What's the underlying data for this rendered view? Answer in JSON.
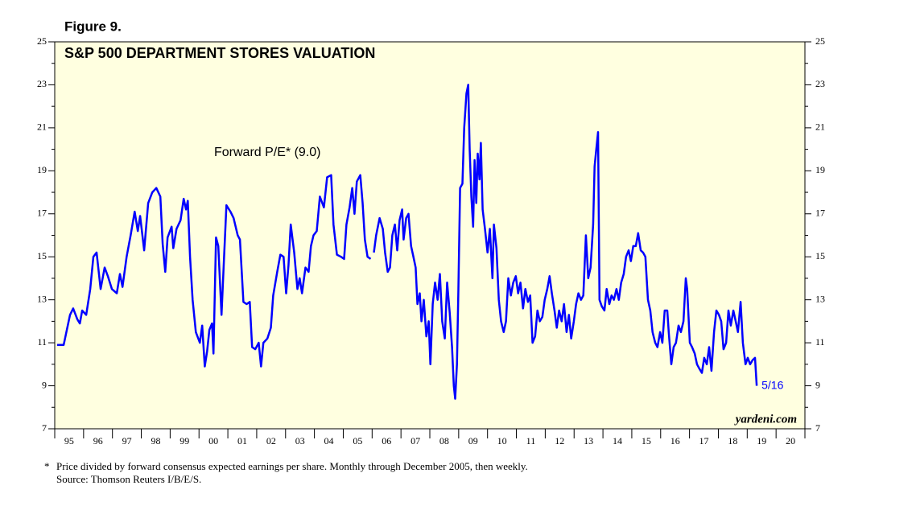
{
  "chart_data": {
    "type": "line",
    "figure_label": "Figure 9.",
    "title": "S&P 500 DEPARTMENT STORES VALUATION",
    "series": [
      {
        "name": "Forward P/E* (9.0)",
        "color": "#0000ff",
        "x": [
          1995.08,
          1995.31,
          1995.53,
          1995.64,
          1995.78,
          1995.87,
          1995.95,
          1996.09,
          1996.23,
          1996.34,
          1996.45,
          1996.59,
          1996.73,
          1996.84,
          1996.98,
          1997.15,
          1997.26,
          1997.35,
          1997.49,
          1997.63,
          1997.77,
          1997.88,
          1997.96,
          1998.1,
          1998.24,
          1998.38,
          1998.52,
          1998.66,
          1998.74,
          1998.83,
          1998.91,
          1999.05,
          1999.11,
          1999.22,
          1999.36,
          1999.47,
          1999.55,
          1999.61,
          1999.69,
          1999.78,
          1999.89,
          2000.03,
          2000.11,
          2000.2,
          2000.28,
          2000.36,
          2000.45,
          2000.5,
          2000.59,
          2000.67,
          2000.78,
          2000.87,
          2000.95,
          2001.09,
          2001.2,
          2001.34,
          2001.42,
          2001.54,
          2001.65,
          2001.76,
          2001.84,
          2001.95,
          2002.07,
          2002.15,
          2002.23,
          2002.37,
          2002.49,
          2002.57,
          2002.71,
          2002.82,
          2002.93,
          2003.02,
          2003.1,
          2003.18,
          2003.3,
          2003.41,
          2003.49,
          2003.57,
          2003.69,
          2003.8,
          2003.88,
          2003.97,
          2004.08,
          2004.19,
          2004.33,
          2004.44,
          2004.58,
          2004.66,
          2004.78,
          2004.92,
          2005.03,
          2005.11,
          2005.22,
          2005.31,
          2005.39,
          2005.47,
          2005.59,
          2005.67,
          2005.75,
          2005.84,
          2005.95,
          2005.98,
          2006.06,
          2006.14,
          2006.26,
          2006.37,
          2006.45,
          2006.54,
          2006.62,
          2006.7,
          2006.79,
          2006.87,
          2006.95,
          2007.04,
          2007.09,
          2007.18,
          2007.26,
          2007.35,
          2007.43,
          2007.51,
          2007.57,
          2007.65,
          2007.71,
          2007.79,
          2007.88,
          2007.96,
          2008.02,
          2008.1,
          2008.18,
          2008.27,
          2008.35,
          2008.43,
          2008.52,
          2008.6,
          2008.69,
          2008.77,
          2008.83,
          2008.88,
          2008.94,
          2008.99,
          2009.05,
          2009.13,
          2009.19,
          2009.27,
          2009.33,
          2009.38,
          2009.44,
          2009.5,
          2009.55,
          2009.61,
          2009.66,
          2009.72,
          2009.77,
          2009.83,
          2009.91,
          2010.0,
          2010.08,
          2010.17,
          2010.22,
          2010.31,
          2010.39,
          2010.47,
          2010.56,
          2010.64,
          2010.72,
          2010.81,
          2010.89,
          2010.98,
          2011.06,
          2011.14,
          2011.23,
          2011.31,
          2011.4,
          2011.48,
          2011.56,
          2011.65,
          2011.73,
          2011.81,
          2011.9,
          2011.98,
          2012.07,
          2012.15,
          2012.23,
          2012.32,
          2012.4,
          2012.48,
          2012.57,
          2012.65,
          2012.74,
          2012.82,
          2012.9,
          2012.99,
          2013.07,
          2013.15,
          2013.24,
          2013.32,
          2013.41,
          2013.49,
          2013.57,
          2013.66,
          2013.71,
          2013.77,
          2013.83,
          2013.88,
          2013.96,
          2014.05,
          2014.13,
          2014.22,
          2014.3,
          2014.38,
          2014.47,
          2014.55,
          2014.63,
          2014.72,
          2014.8,
          2014.89,
          2014.97,
          2015.05,
          2015.14,
          2015.22,
          2015.31,
          2015.39,
          2015.47,
          2015.56,
          2015.64,
          2015.72,
          2015.81,
          2015.89,
          2015.98,
          2016.06,
          2016.14,
          2016.23,
          2016.28,
          2016.37,
          2016.45,
          2016.53,
          2016.62,
          2016.7,
          2016.79,
          2016.87,
          2016.92,
          2017.01,
          2017.09,
          2017.18,
          2017.26,
          2017.34,
          2017.43,
          2017.51,
          2017.6,
          2017.68,
          2017.76,
          2017.85,
          2017.93,
          2018.02,
          2018.1,
          2018.18,
          2018.27,
          2018.35,
          2018.43,
          2018.52,
          2018.6,
          2018.68,
          2018.77,
          2018.85,
          2018.94,
          2019.02,
          2019.1,
          2019.19,
          2019.27,
          2019.33
        ],
        "values": [
          10.9,
          10.9,
          12.3,
          12.6,
          12.1,
          11.9,
          12.5,
          12.3,
          13.5,
          15.0,
          15.2,
          13.5,
          14.5,
          14.1,
          13.5,
          13.3,
          14.2,
          13.6,
          15.0,
          16.0,
          17.1,
          16.2,
          16.9,
          15.3,
          17.5,
          18.0,
          18.2,
          17.8,
          15.6,
          14.3,
          15.9,
          16.4,
          15.4,
          16.3,
          16.7,
          17.7,
          17.2,
          17.6,
          15.0,
          13.0,
          11.5,
          11.0,
          11.8,
          9.9,
          10.6,
          11.6,
          11.9,
          10.5,
          15.9,
          15.5,
          12.3,
          15.0,
          17.4,
          17.1,
          16.8,
          16.0,
          15.8,
          12.9,
          12.8,
          12.9,
          10.8,
          10.7,
          11.0,
          9.9,
          11.0,
          11.2,
          11.7,
          13.2,
          14.3,
          15.1,
          15.0,
          13.3,
          14.6,
          16.5,
          15.2,
          13.5,
          14.0,
          13.3,
          14.5,
          14.3,
          15.5,
          16.0,
          16.2,
          17.8,
          17.3,
          18.7,
          18.8,
          16.5,
          15.1,
          15.0,
          14.9,
          16.5,
          17.3,
          18.2,
          17.0,
          18.5,
          18.8,
          17.5,
          15.8,
          15.0,
          14.9,
          null,
          15.2,
          16.0,
          16.8,
          16.3,
          15.2,
          14.3,
          14.5,
          16.0,
          16.5,
          15.3,
          16.7,
          17.2,
          15.8,
          16.8,
          17.0,
          15.5,
          15.0,
          14.5,
          12.8,
          13.3,
          12.0,
          13.0,
          11.3,
          12.0,
          10.0,
          12.8,
          13.8,
          13.0,
          14.2,
          12.0,
          11.2,
          13.8,
          12.4,
          10.8,
          9.0,
          8.4,
          10.0,
          13.5,
          18.2,
          18.4,
          21.0,
          22.6,
          23.0,
          20.0,
          17.8,
          16.4,
          19.5,
          17.5,
          19.8,
          18.6,
          20.3,
          17.2,
          16.3,
          15.2,
          16.3,
          14.0,
          16.5,
          15.4,
          13.0,
          12.0,
          11.5,
          12.0,
          14.0,
          13.2,
          13.8,
          14.1,
          13.3,
          13.8,
          12.6,
          13.5,
          12.9,
          13.2,
          11.0,
          11.3,
          12.5,
          12.0,
          12.2,
          13.0,
          13.5,
          14.1,
          13.3,
          12.5,
          11.7,
          12.5,
          12.0,
          12.8,
          11.5,
          12.3,
          11.2,
          12.0,
          12.8,
          13.3,
          13.0,
          13.2,
          16.0,
          14.0,
          14.5,
          16.5,
          19.2,
          20.0,
          20.8,
          13.0,
          12.7,
          12.5,
          13.5,
          12.8,
          13.2,
          13.0,
          13.5,
          13.0,
          13.8,
          14.2,
          15.0,
          15.3,
          14.8,
          15.5,
          15.5,
          16.1,
          15.3,
          15.2,
          15.0,
          13.0,
          12.5,
          11.5,
          11.0,
          10.8,
          11.5,
          11.0,
          12.5,
          12.5,
          11.5,
          10.0,
          10.8,
          11.0,
          11.8,
          11.5,
          12.0,
          14.0,
          13.5,
          11.0,
          10.8,
          10.5,
          10.0,
          9.8,
          9.6,
          10.3,
          10.0,
          10.8,
          9.7,
          11.5,
          12.5,
          12.3,
          12.0,
          10.7,
          11.0,
          12.5,
          11.8,
          12.5,
          12.0,
          11.5,
          12.9,
          11.0,
          10.0,
          10.3,
          10.0,
          10.2,
          10.3,
          9.0
        ]
      }
    ],
    "xlim": [
      1995,
      2021
    ],
    "xticks": [
      {
        "value": 1995.5,
        "label": "95"
      },
      {
        "value": 1996.5,
        "label": "96"
      },
      {
        "value": 1997.5,
        "label": "97"
      },
      {
        "value": 1998.5,
        "label": "98"
      },
      {
        "value": 1999.5,
        "label": "99"
      },
      {
        "value": 2000.5,
        "label": "00"
      },
      {
        "value": 2001.5,
        "label": "01"
      },
      {
        "value": 2002.5,
        "label": "02"
      },
      {
        "value": 2003.5,
        "label": "03"
      },
      {
        "value": 2004.5,
        "label": "04"
      },
      {
        "value": 2005.5,
        "label": "05"
      },
      {
        "value": 2006.5,
        "label": "06"
      },
      {
        "value": 2007.5,
        "label": "07"
      },
      {
        "value": 2008.5,
        "label": "08"
      },
      {
        "value": 2009.5,
        "label": "09"
      },
      {
        "value": 2010.5,
        "label": "10"
      },
      {
        "value": 2011.5,
        "label": "11"
      },
      {
        "value": 2012.5,
        "label": "12"
      },
      {
        "value": 2013.5,
        "label": "13"
      },
      {
        "value": 2014.5,
        "label": "14"
      },
      {
        "value": 2015.5,
        "label": "15"
      },
      {
        "value": 2016.5,
        "label": "16"
      },
      {
        "value": 2017.5,
        "label": "17"
      },
      {
        "value": 2018.5,
        "label": "18"
      },
      {
        "value": 2019.5,
        "label": "19"
      },
      {
        "value": 2020.5,
        "label": "20"
      }
    ],
    "ylim": [
      7,
      25
    ],
    "yticks": [
      7,
      9,
      11,
      13,
      15,
      17,
      19,
      21,
      23,
      25
    ],
    "grid": false,
    "background": "#ffffe0",
    "last_value_label": "5/16",
    "source_mark": "yardeni.com",
    "footnote_marker": "*",
    "footnote": "Price divided by forward consensus expected earnings per share. Monthly through December 2005, then weekly.",
    "source": "Source: Thomson Reuters I/B/E/S."
  }
}
